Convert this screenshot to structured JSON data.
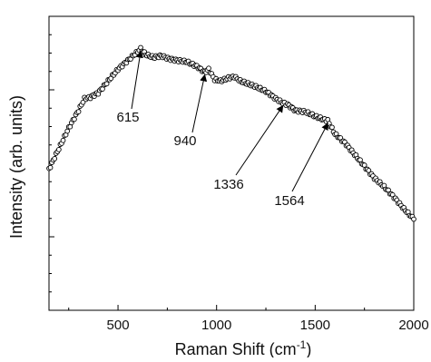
{
  "chart_data": {
    "type": "scatter",
    "title": "",
    "xlabel": "Raman Shift (cm",
    "xlabel_sup": "-1",
    "xlabel_close": ")",
    "ylabel": "Intensity (arb. units)",
    "xlim": [
      150,
      2000
    ],
    "ylim": [
      0,
      100
    ],
    "xticks": [
      500,
      1000,
      1500,
      2000
    ],
    "xtick_labels": [
      "500",
      "1000",
      "1500",
      "2000"
    ],
    "y_tick_labels_shown": false,
    "marker": "open-circle",
    "line_color": "#000000",
    "series": [
      {
        "x": [
          150,
          200,
          250,
          300,
          330,
          360,
          400,
          450,
          500,
          550,
          600,
          615,
          640,
          680,
          720,
          760,
          800,
          850,
          900,
          940,
          960,
          990,
          1020,
          1060,
          1090,
          1120,
          1160,
          1200,
          1250,
          1300,
          1336,
          1360,
          1400,
          1450,
          1500,
          1540,
          1564,
          1600,
          1650,
          1700,
          1750,
          1800,
          1850,
          1900,
          1950,
          2000
        ],
        "y": [
          48,
          55,
          62,
          68,
          72,
          72.5,
          74,
          78,
          82,
          85,
          88,
          89,
          87,
          86,
          86.5,
          85.5,
          85,
          84.5,
          83,
          81,
          82,
          78.5,
          78,
          79,
          79.5,
          78,
          77,
          76,
          74.5,
          72,
          70.5,
          70,
          68,
          67.5,
          66,
          65,
          64.5,
          60,
          57,
          53,
          49,
          45,
          42,
          38.5,
          34.5,
          31
        ]
      }
    ],
    "annotations": [
      {
        "text": "615",
        "x": 615,
        "y": 89
      },
      {
        "text": "940",
        "x": 940,
        "y": 81
      },
      {
        "text": "1336",
        "x": 1336,
        "y": 70.5
      },
      {
        "text": "1564",
        "x": 1564,
        "y": 64.5
      }
    ]
  }
}
